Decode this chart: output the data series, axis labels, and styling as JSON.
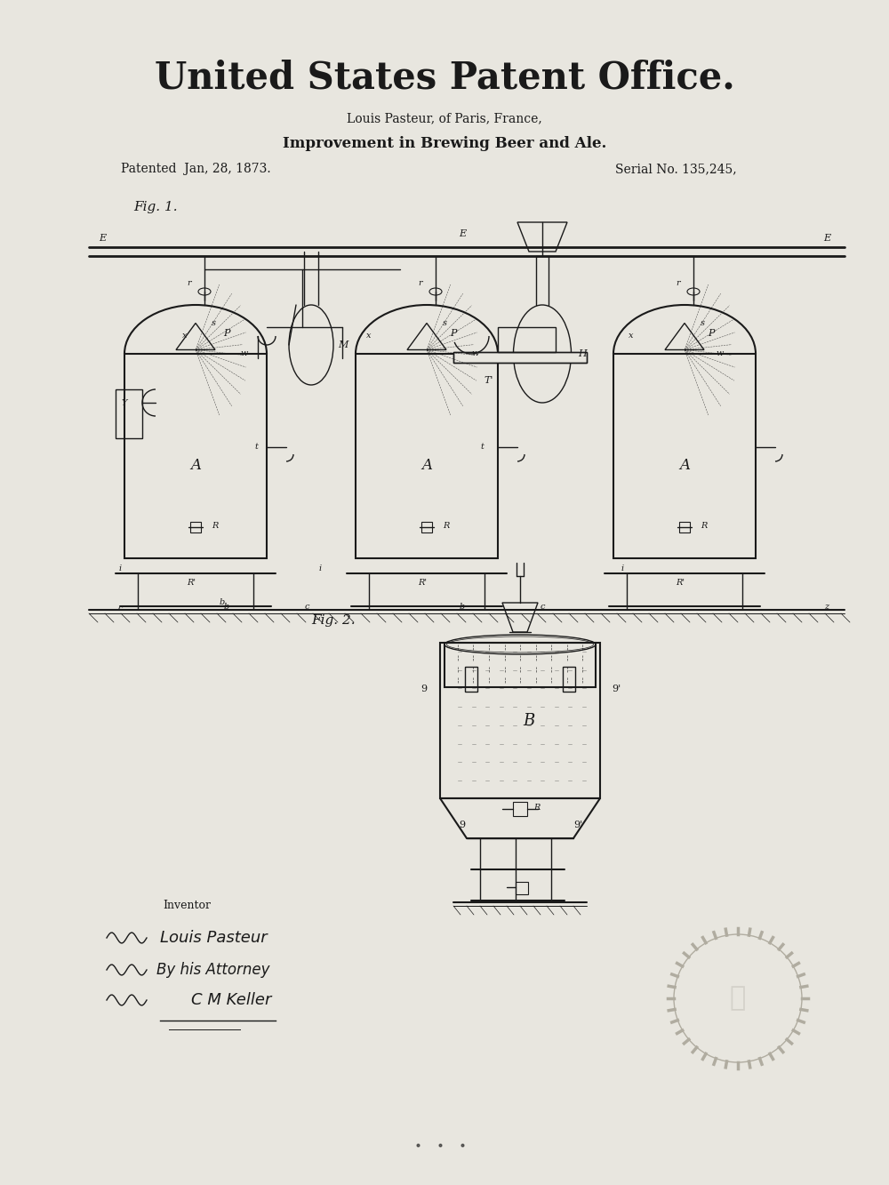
{
  "bg_color": "#e8e6df",
  "line_color": "#1a1a1a",
  "title_text": "United States Patent Office.",
  "subtitle1": "Louis Pasteur, of Paris, France,",
  "subtitle2": "Improvement in Brewing Beer and Ale.",
  "patented": "Patented  Jan, 28, 1873.",
  "serial": "Serial No. 135,245,",
  "fig1_label": "Fig. 1.",
  "fig2_label": "Fig. 2.",
  "inventor_text": "Inventor",
  "sig_line1": "Louis Pasteur",
  "sig_line2": "By his Attorney",
  "sig_line3": "C M Keller"
}
